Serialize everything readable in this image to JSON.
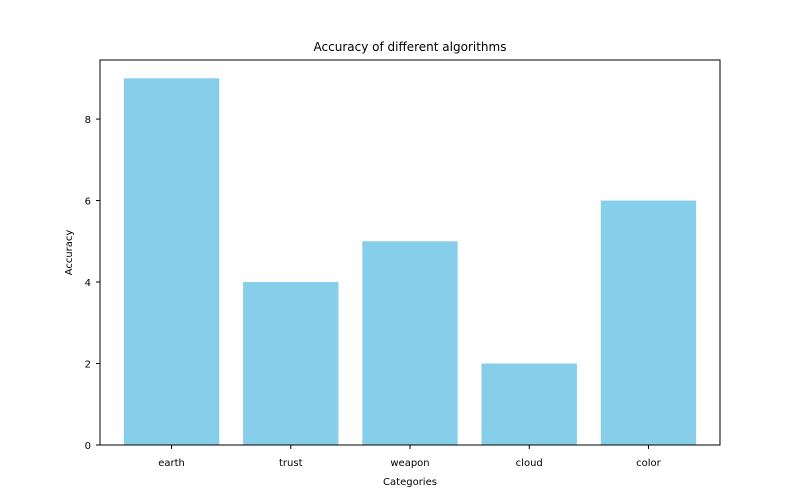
{
  "chart_data": {
    "type": "bar",
    "title": "Accuracy of different algorithms",
    "xlabel": "Categories",
    "ylabel": "Accuracy",
    "categories": [
      "earth",
      "trust",
      "weapon",
      "cloud",
      "color"
    ],
    "values": [
      9,
      4,
      5,
      2,
      6
    ],
    "ylim": [
      0,
      9.45
    ],
    "yticks": [
      0,
      2,
      4,
      6,
      8
    ],
    "bar_color": "#87CEEB",
    "grid": false,
    "legend": "none"
  }
}
